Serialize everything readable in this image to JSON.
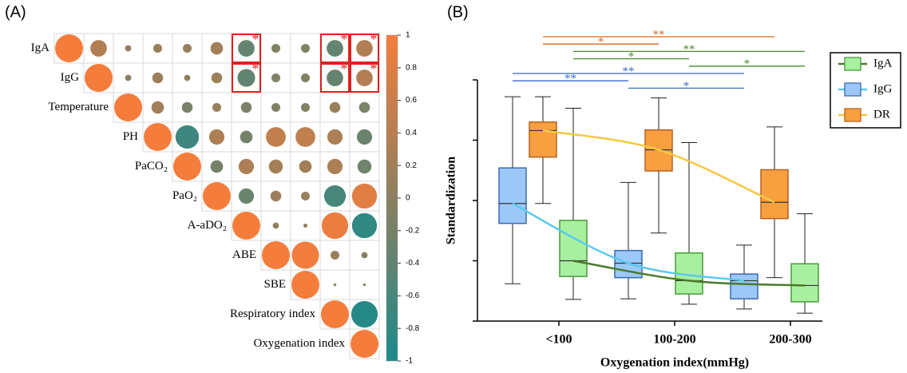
{
  "chart_data": [
    {
      "type": "correlation",
      "panel_label": "(A)",
      "variables": [
        "IgA",
        "IgG",
        "Temperature",
        "PH",
        "PaCO₂",
        "PaO₂",
        "A-aDO₂",
        "ABE",
        "SBE",
        "Respiratory index",
        "Oxygenation index"
      ],
      "matrix": [
        [
          1,
          0.35,
          0.05,
          0.1,
          0.1,
          0.2,
          -0.35,
          -0.1,
          -0.1,
          -0.35,
          0.35
        ],
        [
          null,
          1,
          -0.05,
          0.15,
          0.05,
          0.15,
          -0.4,
          -0.1,
          -0.1,
          -0.35,
          0.35
        ],
        [
          null,
          null,
          1,
          0.2,
          -0.15,
          0.1,
          -0.15,
          -0.1,
          -0.1,
          0.15,
          -0.15
        ],
        [
          null,
          null,
          null,
          1,
          -0.7,
          0.3,
          -0.2,
          0.5,
          0.5,
          0.3,
          -0.3
        ],
        [
          null,
          null,
          null,
          null,
          1,
          -0.2,
          0.3,
          0.25,
          0.2,
          0.3,
          -0.25
        ],
        [
          null,
          null,
          null,
          null,
          null,
          1,
          -0.3,
          0.15,
          0.1,
          -0.6,
          0.8
        ],
        [
          null,
          null,
          null,
          null,
          null,
          null,
          1,
          0.05,
          0.02,
          0.9,
          -0.8
        ],
        [
          null,
          null,
          null,
          null,
          null,
          null,
          null,
          1,
          0.95,
          0.1,
          -0.05
        ],
        [
          null,
          null,
          null,
          null,
          null,
          null,
          null,
          null,
          1,
          0.01,
          0.01
        ],
        [
          null,
          null,
          null,
          null,
          null,
          null,
          null,
          null,
          null,
          1,
          -0.9
        ],
        [
          null,
          null,
          null,
          null,
          null,
          null,
          null,
          null,
          null,
          null,
          1
        ]
      ],
      "colorscale": [
        "#1b8a8c",
        "#8c8060",
        "#f57d3c"
      ],
      "clim": [
        -1,
        1
      ],
      "colorbar_ticks": [
        1,
        0.8,
        0.6,
        0.4,
        0.2,
        0,
        -0.2,
        -0.4,
        -0.6,
        -0.8,
        -1
      ],
      "annotation_color": "#e02020",
      "annotations": [
        {
          "text": "*",
          "row": 0,
          "col": 6
        },
        {
          "text": "*",
          "row": 0,
          "col": 9
        },
        {
          "text": "*",
          "row": 0,
          "col": 10
        },
        {
          "text": "*",
          "row": 1,
          "col": 6
        },
        {
          "text": "*",
          "row": 1,
          "col": 9
        },
        {
          "text": "*",
          "row": 1,
          "col": 10
        }
      ]
    },
    {
      "type": "box",
      "panel_label": "(B)",
      "ylabel": "Standardization",
      "xlabel": "Oxygenation index(mmHg)",
      "categories": [
        "<100",
        "100-200",
        "200-300"
      ],
      "ylim": [
        -2,
        2
      ],
      "yticks": [
        -2,
        -1,
        0,
        1,
        2
      ],
      "series": [
        {
          "name": "IgA",
          "color": "#a8f0a0",
          "edge_color": "#4a9a3a",
          "line_color": "#4a7a2a",
          "boxes": [
            {
              "whisker_low": -1.64,
              "q1": -1.26,
              "median": -1.0,
              "q3": -0.33,
              "whisker_high": 1.53
            },
            {
              "whisker_low": -1.72,
              "q1": -1.55,
              "median": -1.33,
              "q3": -0.87,
              "whisker_high": 0.96
            },
            {
              "whisker_low": -1.87,
              "q1": -1.68,
              "median": -1.41,
              "q3": -1.05,
              "whisker_high": -0.22
            }
          ]
        },
        {
          "name": "IgG",
          "color": "#9cc8f8",
          "edge_color": "#3a6ab0",
          "line_color": "#5bc8f0",
          "boxes": [
            {
              "whisker_low": -1.38,
              "q1": -0.38,
              "median": -0.05,
              "q3": 0.54,
              "whisker_high": 1.72
            },
            {
              "whisker_low": -1.63,
              "q1": -1.28,
              "median": -1.04,
              "q3": -0.83,
              "whisker_high": 0.3
            },
            {
              "whisker_low": -1.8,
              "q1": -1.63,
              "median": -1.33,
              "q3": -1.22,
              "whisker_high": -0.74
            }
          ]
        },
        {
          "name": "DR",
          "color": "#f8a040",
          "edge_color": "#b86020",
          "line_color": "#f5c842",
          "boxes": [
            {
              "whisker_low": -0.05,
              "q1": 0.72,
              "median": 1.16,
              "q3": 1.3,
              "whisker_high": 1.72
            },
            {
              "whisker_low": -0.54,
              "q1": 0.49,
              "median": 0.84,
              "q3": 1.17,
              "whisker_high": 1.7
            },
            {
              "whisker_low": -1.28,
              "q1": -0.3,
              "median": -0.03,
              "q3": 0.51,
              "whisker_high": 1.22
            }
          ]
        }
      ],
      "comparisons": [
        {
          "series": "DR",
          "from": "<100",
          "to": "200-300",
          "label": "**",
          "color": "#d86a1e"
        },
        {
          "series": "DR",
          "from": "<100",
          "to": "100-200",
          "label": "*",
          "color": "#d86a1e"
        },
        {
          "series": "IgA",
          "from": "<100",
          "to": "200-300",
          "label": "**",
          "color": "#4a8a2a"
        },
        {
          "series": "IgA",
          "from": "<100",
          "to": "100-200",
          "label": "*",
          "color": "#4a8a2a"
        },
        {
          "series": "IgA",
          "from": "100-200",
          "to": "200-300",
          "label": "*",
          "color": "#4a8a2a"
        },
        {
          "series": "IgG",
          "from": "<100",
          "to": "200-300",
          "label": "**",
          "color": "#3a6ac8"
        },
        {
          "series": "IgG",
          "from": "<100",
          "to": "100-200",
          "label": "**",
          "color": "#3a6ac8"
        },
        {
          "series": "IgG",
          "from": "100-200",
          "to": "200-300",
          "label": "*",
          "color": "#3a6ac8"
        }
      ]
    }
  ]
}
